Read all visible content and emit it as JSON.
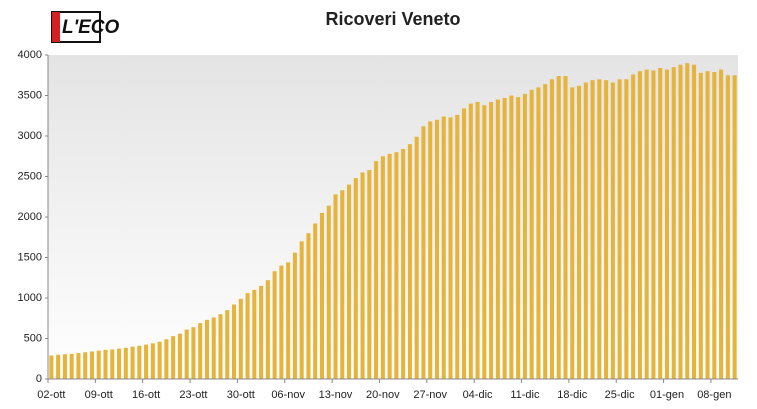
{
  "logo": "L'ECO",
  "chart_data": {
    "type": "bar",
    "title": "Ricoveri Veneto",
    "color": "#e6b43a",
    "categories": [
      "02-ott",
      null,
      null,
      null,
      null,
      null,
      null,
      "09-ott",
      null,
      null,
      null,
      null,
      null,
      null,
      "16-ott",
      null,
      null,
      null,
      null,
      null,
      null,
      "23-ott",
      null,
      null,
      null,
      null,
      null,
      null,
      "30-ott",
      null,
      null,
      null,
      null,
      null,
      null,
      "06-nov",
      null,
      null,
      null,
      null,
      null,
      null,
      "13-nov",
      null,
      null,
      null,
      null,
      null,
      null,
      "20-nov",
      null,
      null,
      null,
      null,
      null,
      null,
      "27-nov",
      null,
      null,
      null,
      null,
      null,
      null,
      "04-dic",
      null,
      null,
      null,
      null,
      null,
      null,
      "11-dic",
      null,
      null,
      null,
      null,
      null,
      null,
      "18-dic",
      null,
      null,
      null,
      null,
      null,
      null,
      "25-dic",
      null,
      null,
      null,
      null,
      null,
      null,
      "01-gen",
      null,
      null,
      null,
      null,
      null,
      null,
      "08-gen",
      null,
      null,
      null
    ],
    "values": [
      290,
      300,
      305,
      310,
      320,
      330,
      340,
      350,
      360,
      365,
      375,
      385,
      400,
      410,
      425,
      440,
      460,
      490,
      530,
      560,
      610,
      640,
      690,
      730,
      760,
      800,
      850,
      920,
      990,
      1060,
      1100,
      1150,
      1220,
      1330,
      1400,
      1440,
      1560,
      1700,
      1800,
      1920,
      2050,
      2140,
      2280,
      2330,
      2400,
      2480,
      2550,
      2580,
      2690,
      2750,
      2780,
      2800,
      2840,
      2900,
      2990,
      3120,
      3180,
      3200,
      3240,
      3230,
      3260,
      3340,
      3400,
      3420,
      3380,
      3420,
      3450,
      3470,
      3500,
      3480,
      3520,
      3570,
      3600,
      3640,
      3700,
      3740,
      3740,
      3600,
      3620,
      3660,
      3690,
      3700,
      3690,
      3660,
      3700,
      3700,
      3760,
      3800,
      3820,
      3810,
      3840,
      3820,
      3850,
      3880,
      3900,
      3880,
      3780,
      3800,
      3790,
      3820,
      3750,
      3750
    ],
    "ylim": [
      0,
      4000
    ],
    "yticks": [
      0,
      500,
      1000,
      1500,
      2000,
      2500,
      3000,
      3500,
      4000
    ]
  }
}
